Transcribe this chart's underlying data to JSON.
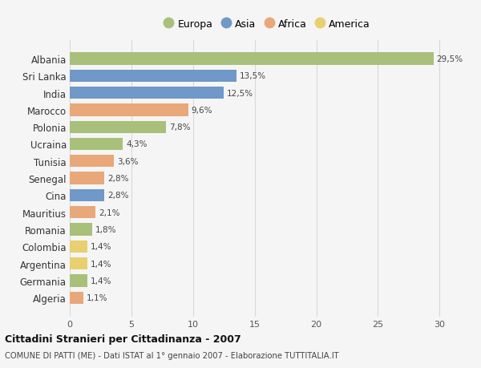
{
  "countries": [
    "Albania",
    "Sri Lanka",
    "India",
    "Marocco",
    "Polonia",
    "Ucraina",
    "Tunisia",
    "Senegal",
    "Cina",
    "Mauritius",
    "Romania",
    "Colombia",
    "Argentina",
    "Germania",
    "Algeria"
  ],
  "values": [
    29.5,
    13.5,
    12.5,
    9.6,
    7.8,
    4.3,
    3.6,
    2.8,
    2.8,
    2.1,
    1.8,
    1.4,
    1.4,
    1.4,
    1.1
  ],
  "labels": [
    "29,5%",
    "13,5%",
    "12,5%",
    "9,6%",
    "7,8%",
    "4,3%",
    "3,6%",
    "2,8%",
    "2,8%",
    "2,1%",
    "1,8%",
    "1,4%",
    "1,4%",
    "1,4%",
    "1,1%"
  ],
  "continents": [
    "Europa",
    "Asia",
    "Asia",
    "Africa",
    "Europa",
    "Europa",
    "Africa",
    "Africa",
    "Asia",
    "Africa",
    "Europa",
    "America",
    "America",
    "Europa",
    "Africa"
  ],
  "continent_colors": {
    "Europa": "#a8c07a",
    "Asia": "#7098c8",
    "Africa": "#e8a87a",
    "America": "#e8d070"
  },
  "legend_order": [
    "Europa",
    "Asia",
    "Africa",
    "America"
  ],
  "title": "Cittadini Stranieri per Cittadinanza - 2007",
  "subtitle": "COMUNE DI PATTI (ME) - Dati ISTAT al 1° gennaio 2007 - Elaborazione TUTTITALIA.IT",
  "xlim": [
    0,
    32
  ],
  "xticks": [
    0,
    5,
    10,
    15,
    20,
    25,
    30
  ],
  "background_color": "#f5f5f5",
  "grid_color": "#d8d8d8"
}
